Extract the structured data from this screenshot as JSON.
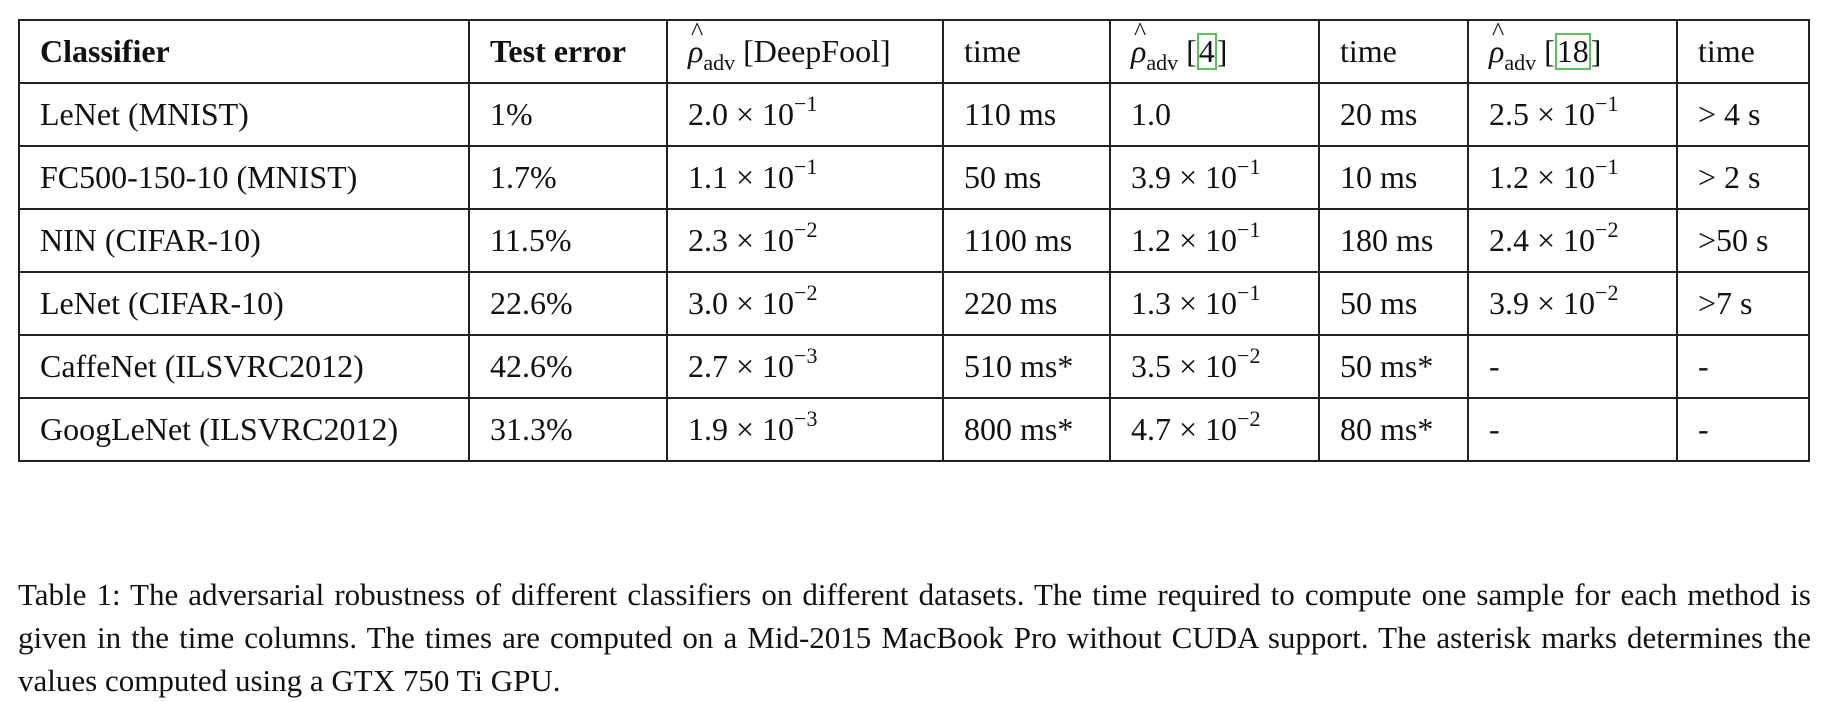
{
  "table": {
    "headers": {
      "classifier": "Classifier",
      "test_error": "Test error",
      "rho_symbol": "ρ",
      "rho_hat": "^",
      "rho_sub": "adv",
      "deepfool_label": "[DeepFool]",
      "method4_open": "[",
      "method4_ref": "4",
      "method4_close": "]",
      "method18_open": "[",
      "method18_ref": "18",
      "method18_close": "]",
      "time": "time"
    },
    "sci": {
      "times": "×",
      "base": "10"
    },
    "rows": [
      {
        "classifier": "LeNet (MNIST)",
        "test_error": "1%",
        "deepfool_m": "2.0",
        "deepfool_e": "−1",
        "deepfool_time": "110 ms",
        "m4_m": "1.0",
        "m4_e": "",
        "m4_time": "20 ms",
        "m18_m": "2.5",
        "m18_e": "−1",
        "m18_time": "> 4 s"
      },
      {
        "classifier": "FC500-150-10 (MNIST)",
        "test_error": "1.7%",
        "deepfool_m": "1.1",
        "deepfool_e": "−1",
        "deepfool_time": "50 ms",
        "m4_m": "3.9",
        "m4_e": "−1",
        "m4_time": "10 ms",
        "m18_m": "1.2",
        "m18_e": "−1",
        "m18_time": "> 2 s"
      },
      {
        "classifier": "NIN (CIFAR-10)",
        "test_error": "11.5%",
        "deepfool_m": "2.3",
        "deepfool_e": "−2",
        "deepfool_time": "1100 ms",
        "m4_m": "1.2",
        "m4_e": "−1",
        "m4_time": "180 ms",
        "m18_m": "2.4",
        "m18_e": "−2",
        "m18_time": ">50 s"
      },
      {
        "classifier": "LeNet (CIFAR-10)",
        "test_error": "22.6%",
        "deepfool_m": "3.0",
        "deepfool_e": "−2",
        "deepfool_time": "220 ms",
        "m4_m": "1.3",
        "m4_e": "−1",
        "m4_time": "50 ms",
        "m18_m": "3.9",
        "m18_e": "−2",
        "m18_time": ">7 s"
      },
      {
        "classifier": "CaffeNet (ILSVRC2012)",
        "test_error": "42.6%",
        "deepfool_m": "2.7",
        "deepfool_e": "−3",
        "deepfool_time": "510 ms*",
        "m4_m": "3.5",
        "m4_e": "−2",
        "m4_time": "50 ms*",
        "m18_m": "-",
        "m18_e": "",
        "m18_time": "-"
      },
      {
        "classifier": "GoogLeNet (ILSVRC2012)",
        "test_error": "31.3%",
        "deepfool_m": "1.9",
        "deepfool_e": "−3",
        "deepfool_time": "800 ms*",
        "m4_m": "4.7",
        "m4_e": "−2",
        "m4_time": "80 ms*",
        "m18_m": "-",
        "m18_e": "",
        "m18_time": "-"
      }
    ]
  },
  "caption": "Table 1: The adversarial robustness of different classifiers on different datasets. The time required to compute one sample for each method is given in the time columns. The times are computed on a Mid-2015 MacBook Pro without CUDA support. The asterisk marks determines the values computed using a GTX 750 Ti GPU."
}
